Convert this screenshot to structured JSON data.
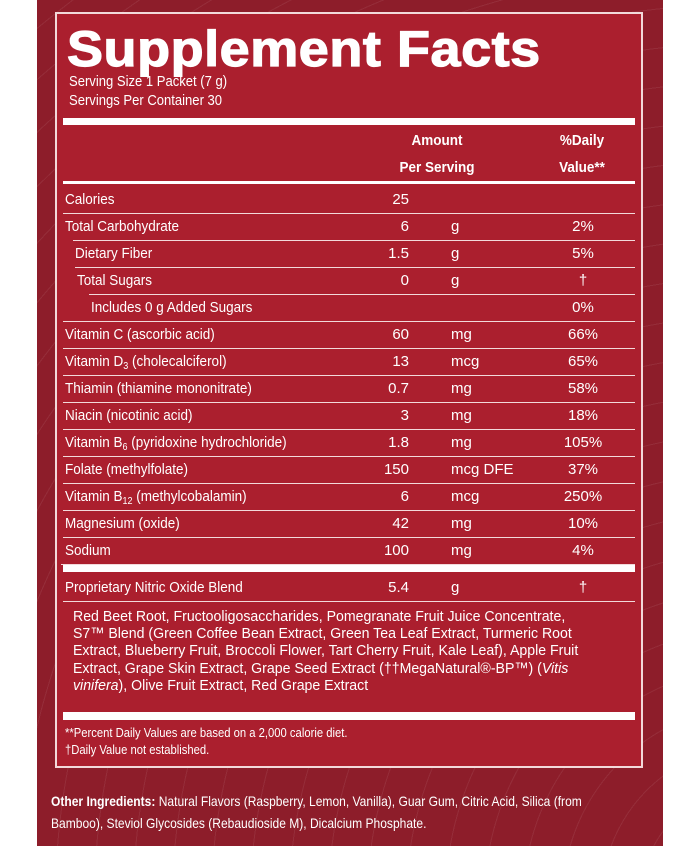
{
  "title": "Supplement Facts",
  "serving_size": "Serving Size 1 Packet (7 g)",
  "servings_per_container": "Servings Per Container 30",
  "header": {
    "amount_line1": "Amount",
    "amount_line2": "Per Serving",
    "dv_line1": "%Daily",
    "dv_line2": "Value**"
  },
  "rows": [
    {
      "name": "Calories",
      "num": "25",
      "unit": "",
      "dv": ""
    },
    {
      "name": "Total Carbohydrate",
      "num": "6",
      "unit": "g",
      "dv": "2%"
    },
    {
      "name": "Dietary Fiber",
      "num": "1.5",
      "unit": "g",
      "dv": "5%"
    },
    {
      "name": "Total Sugars",
      "num": "0",
      "unit": "g",
      "dv": "†"
    },
    {
      "name": "Includes 0 g Added Sugars",
      "num": "",
      "unit": "",
      "dv": "0%"
    },
    {
      "name": "Vitamin C (ascorbic acid)",
      "num": "60",
      "unit": "mg",
      "dv": "66%"
    },
    {
      "name_pre": "Vitamin D",
      "name_sub": "3",
      "name_post": " (cholecalciferol)",
      "num": "13",
      "unit": "mcg",
      "dv": "65%"
    },
    {
      "name": "Thiamin (thiamine mononitrate)",
      "num": "0.7",
      "unit": "mg",
      "dv": "58%"
    },
    {
      "name": "Niacin (nicotinic acid)",
      "num": "3",
      "unit": "mg",
      "dv": "18%"
    },
    {
      "name_pre": "Vitamin B",
      "name_sub": "6",
      "name_post": " (pyridoxine hydrochloride)",
      "num": "1.8",
      "unit": "mg",
      "dv": "105%"
    },
    {
      "name": "Folate (methylfolate)",
      "num": "150",
      "unit": "mcg DFE",
      "dv": "37%"
    },
    {
      "name_pre": "Vitamin B",
      "name_sub": "12",
      "name_post": " (methylcobalamin)",
      "num": "6",
      "unit": "mcg",
      "dv": "250%"
    },
    {
      "name": "Magnesium (oxide)",
      "num": "42",
      "unit": "mg",
      "dv": "10%"
    },
    {
      "name": "Sodium",
      "num": "100",
      "unit": "mg",
      "dv": "4%"
    }
  ],
  "blend": {
    "name": "Proprietary Nitric Oxide Blend",
    "num": "5.4",
    "unit": "g",
    "dv": "†"
  },
  "blend_ingredients": {
    "part1": "Red Beet Root, Fructooligosaccharides, Pomegranate Fruit Juice Concentrate, S7™ Blend (Green Coffee Bean Extract, Green Tea Leaf Extract, Turmeric Root Extract, Blueberry Fruit, Broccoli Flower, Tart Cherry Fruit, Kale Leaf), Apple Fruit Extract, Grape Skin Extract, Grape Seed Extract (††MegaNatural®-BP™) (",
    "italic": "Vitis vinifera",
    "part2": "), Olive Fruit Extract, Red Grape Extract"
  },
  "footnotes": [
    "**Percent Daily Values are based on a 2,000 calorie diet.",
    "†Daily Value not established."
  ],
  "other_ingredients": {
    "label": "Other Ingredients:",
    "text": " Natural Flavors (Raspberry, Lemon, Vanilla), Guar Gum, Citric Acid, Silica (from Bamboo), Steviol Glycosides (Rebaudioside M), Dicalcium Phosphate."
  }
}
